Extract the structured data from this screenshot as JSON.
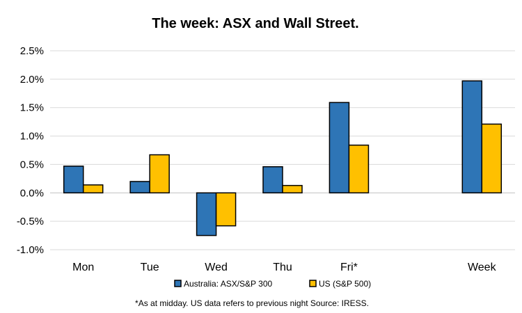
{
  "chart_data": {
    "type": "bar",
    "title": "The week:  ASX and Wall Street.",
    "categories": [
      "Mon",
      "Tue",
      "Wed",
      "Thu",
      "Fri*",
      "",
      "Week"
    ],
    "series": [
      {
        "name": "Australia: ASX/S&P 300",
        "color": "#2E75B6",
        "values": [
          0.47,
          0.2,
          -0.75,
          0.46,
          1.59,
          null,
          1.97
        ]
      },
      {
        "name": "US (S&P 500)",
        "color": "#FFC000",
        "values": [
          0.14,
          0.67,
          -0.58,
          0.13,
          0.84,
          null,
          1.21
        ]
      }
    ],
    "ylim": [
      -1.0,
      2.5
    ],
    "yticks": [
      2.5,
      2.0,
      1.5,
      1.0,
      0.5,
      0.0,
      -0.5,
      -1.0
    ],
    "ytick_labels": [
      "2.5%",
      "2.0%",
      "1.5%",
      "1.0%",
      "0.5%",
      "0.0%",
      "-0.5%",
      "-1.0%"
    ],
    "grid": true,
    "legend_position": "bottom",
    "footnote": "*As at midday. US data refers to previous night  Source:  IRESS."
  }
}
